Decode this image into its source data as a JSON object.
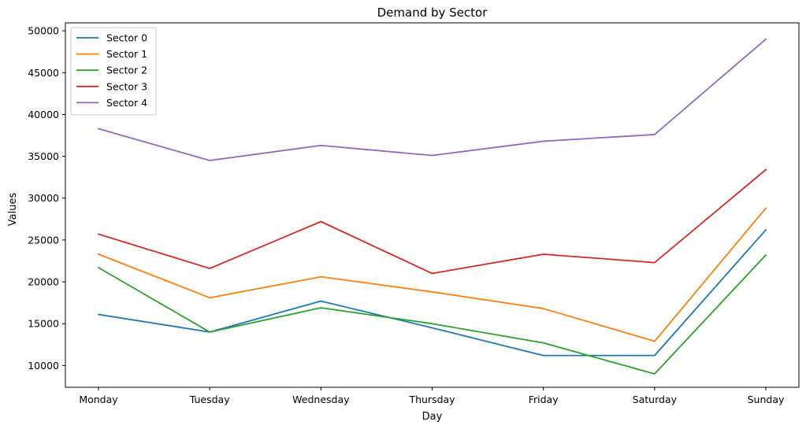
{
  "chart_data": {
    "type": "line",
    "title": "Demand by Sector",
    "xlabel": "Day",
    "ylabel": "Values",
    "categories": [
      "Monday",
      "Tuesday",
      "Wednesday",
      "Thursday",
      "Friday",
      "Saturday",
      "Sunday"
    ],
    "ylim": [
      7400,
      50950
    ],
    "yticks": [
      10000,
      15000,
      20000,
      25000,
      30000,
      35000,
      40000,
      45000,
      50000
    ],
    "grid": false,
    "legend_position": "top-left",
    "series": [
      {
        "name": "Sector 0",
        "color": "#1f77b4",
        "values": [
          16100,
          14000,
          17700,
          14500,
          11200,
          11200,
          26200
        ]
      },
      {
        "name": "Sector 1",
        "color": "#ff7f0e",
        "values": [
          23300,
          18100,
          20600,
          18800,
          16800,
          12900,
          28800
        ]
      },
      {
        "name": "Sector 2",
        "color": "#2ca02c",
        "values": [
          21700,
          14000,
          16900,
          15000,
          12700,
          9000,
          23200
        ]
      },
      {
        "name": "Sector 3",
        "color": "#d62728",
        "values": [
          25700,
          21600,
          27200,
          21000,
          23300,
          22300,
          33400
        ]
      },
      {
        "name": "Sector 4",
        "color": "#9467bd",
        "values": [
          38300,
          34500,
          36300,
          35100,
          36800,
          37600,
          49000
        ]
      }
    ]
  }
}
